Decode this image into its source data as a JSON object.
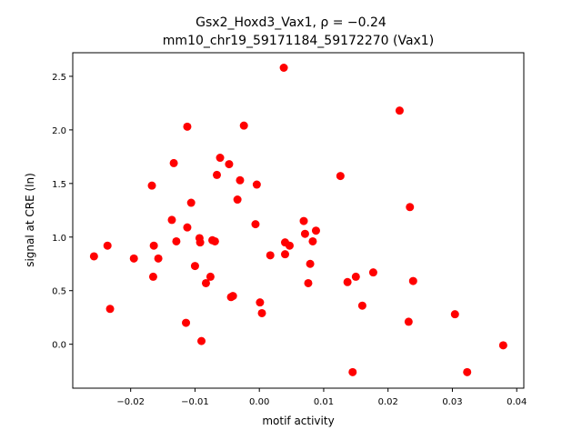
{
  "chart_data": {
    "type": "scatter",
    "title": "Gsx2_Hoxd3_Vax1, ρ = −0.24",
    "subtitle": "mm10_chr19_59171184_59172270 (Vax1)",
    "xlabel": "motif activity",
    "ylabel": "signal at CRE (ln)",
    "xlim": [
      -0.029,
      0.0411
    ],
    "ylim": [
      -0.41,
      2.72
    ],
    "xticks": [
      -0.02,
      -0.01,
      0.0,
      0.01,
      0.02,
      0.03,
      0.04
    ],
    "xtick_labels": [
      "−0.02",
      "−0.01",
      "0.00",
      "0.01",
      "0.02",
      "0.03",
      "0.04"
    ],
    "yticks": [
      0.0,
      0.5,
      1.0,
      1.5,
      2.0,
      2.5
    ],
    "ytick_labels": [
      "0.0",
      "0.5",
      "1.0",
      "1.5",
      "2.0",
      "2.5"
    ],
    "grid": false,
    "color": "#ff0000",
    "points": [
      [
        -0.0257,
        0.82
      ],
      [
        -0.0236,
        0.92
      ],
      [
        -0.0232,
        0.33
      ],
      [
        -0.0195,
        0.8
      ],
      [
        -0.0167,
        1.48
      ],
      [
        -0.0165,
        0.63
      ],
      [
        -0.0164,
        0.92
      ],
      [
        -0.0157,
        0.8
      ],
      [
        -0.0136,
        1.16
      ],
      [
        -0.0133,
        1.69
      ],
      [
        -0.0129,
        0.96
      ],
      [
        -0.0112,
        2.03
      ],
      [
        -0.0112,
        1.09
      ],
      [
        -0.0114,
        0.2
      ],
      [
        -0.0106,
        1.32
      ],
      [
        -0.01,
        0.73
      ],
      [
        -0.0093,
        0.99
      ],
      [
        -0.0092,
        0.95
      ],
      [
        -0.009,
        0.03
      ],
      [
        -0.0083,
        0.57
      ],
      [
        -0.0076,
        0.63
      ],
      [
        -0.0073,
        0.97
      ],
      [
        -0.0069,
        0.96
      ],
      [
        -0.0066,
        1.58
      ],
      [
        -0.0061,
        1.74
      ],
      [
        -0.0047,
        1.68
      ],
      [
        -0.0044,
        0.44
      ],
      [
        -0.0041,
        0.45
      ],
      [
        -0.0034,
        1.35
      ],
      [
        -0.003,
        1.53
      ],
      [
        -0.0024,
        2.04
      ],
      [
        -0.0006,
        1.12
      ],
      [
        -0.0004,
        1.49
      ],
      [
        0.0001,
        0.39
      ],
      [
        0.0004,
        0.29
      ],
      [
        0.0017,
        0.83
      ],
      [
        0.0038,
        2.58
      ],
      [
        0.004,
        0.84
      ],
      [
        0.004,
        0.95
      ],
      [
        0.0047,
        0.92
      ],
      [
        0.0069,
        1.15
      ],
      [
        0.0071,
        1.03
      ],
      [
        0.0076,
        0.57
      ],
      [
        0.0079,
        0.75
      ],
      [
        0.0083,
        0.96
      ],
      [
        0.0088,
        1.06
      ],
      [
        0.0126,
        1.57
      ],
      [
        0.0137,
        0.58
      ],
      [
        0.0145,
        -0.26
      ],
      [
        0.015,
        0.63
      ],
      [
        0.016,
        0.36
      ],
      [
        0.0177,
        0.67
      ],
      [
        0.0218,
        2.18
      ],
      [
        0.0232,
        0.21
      ],
      [
        0.0234,
        1.28
      ],
      [
        0.0239,
        0.59
      ],
      [
        0.0304,
        0.28
      ],
      [
        0.0323,
        -0.26
      ],
      [
        0.0379,
        -0.01
      ]
    ]
  }
}
